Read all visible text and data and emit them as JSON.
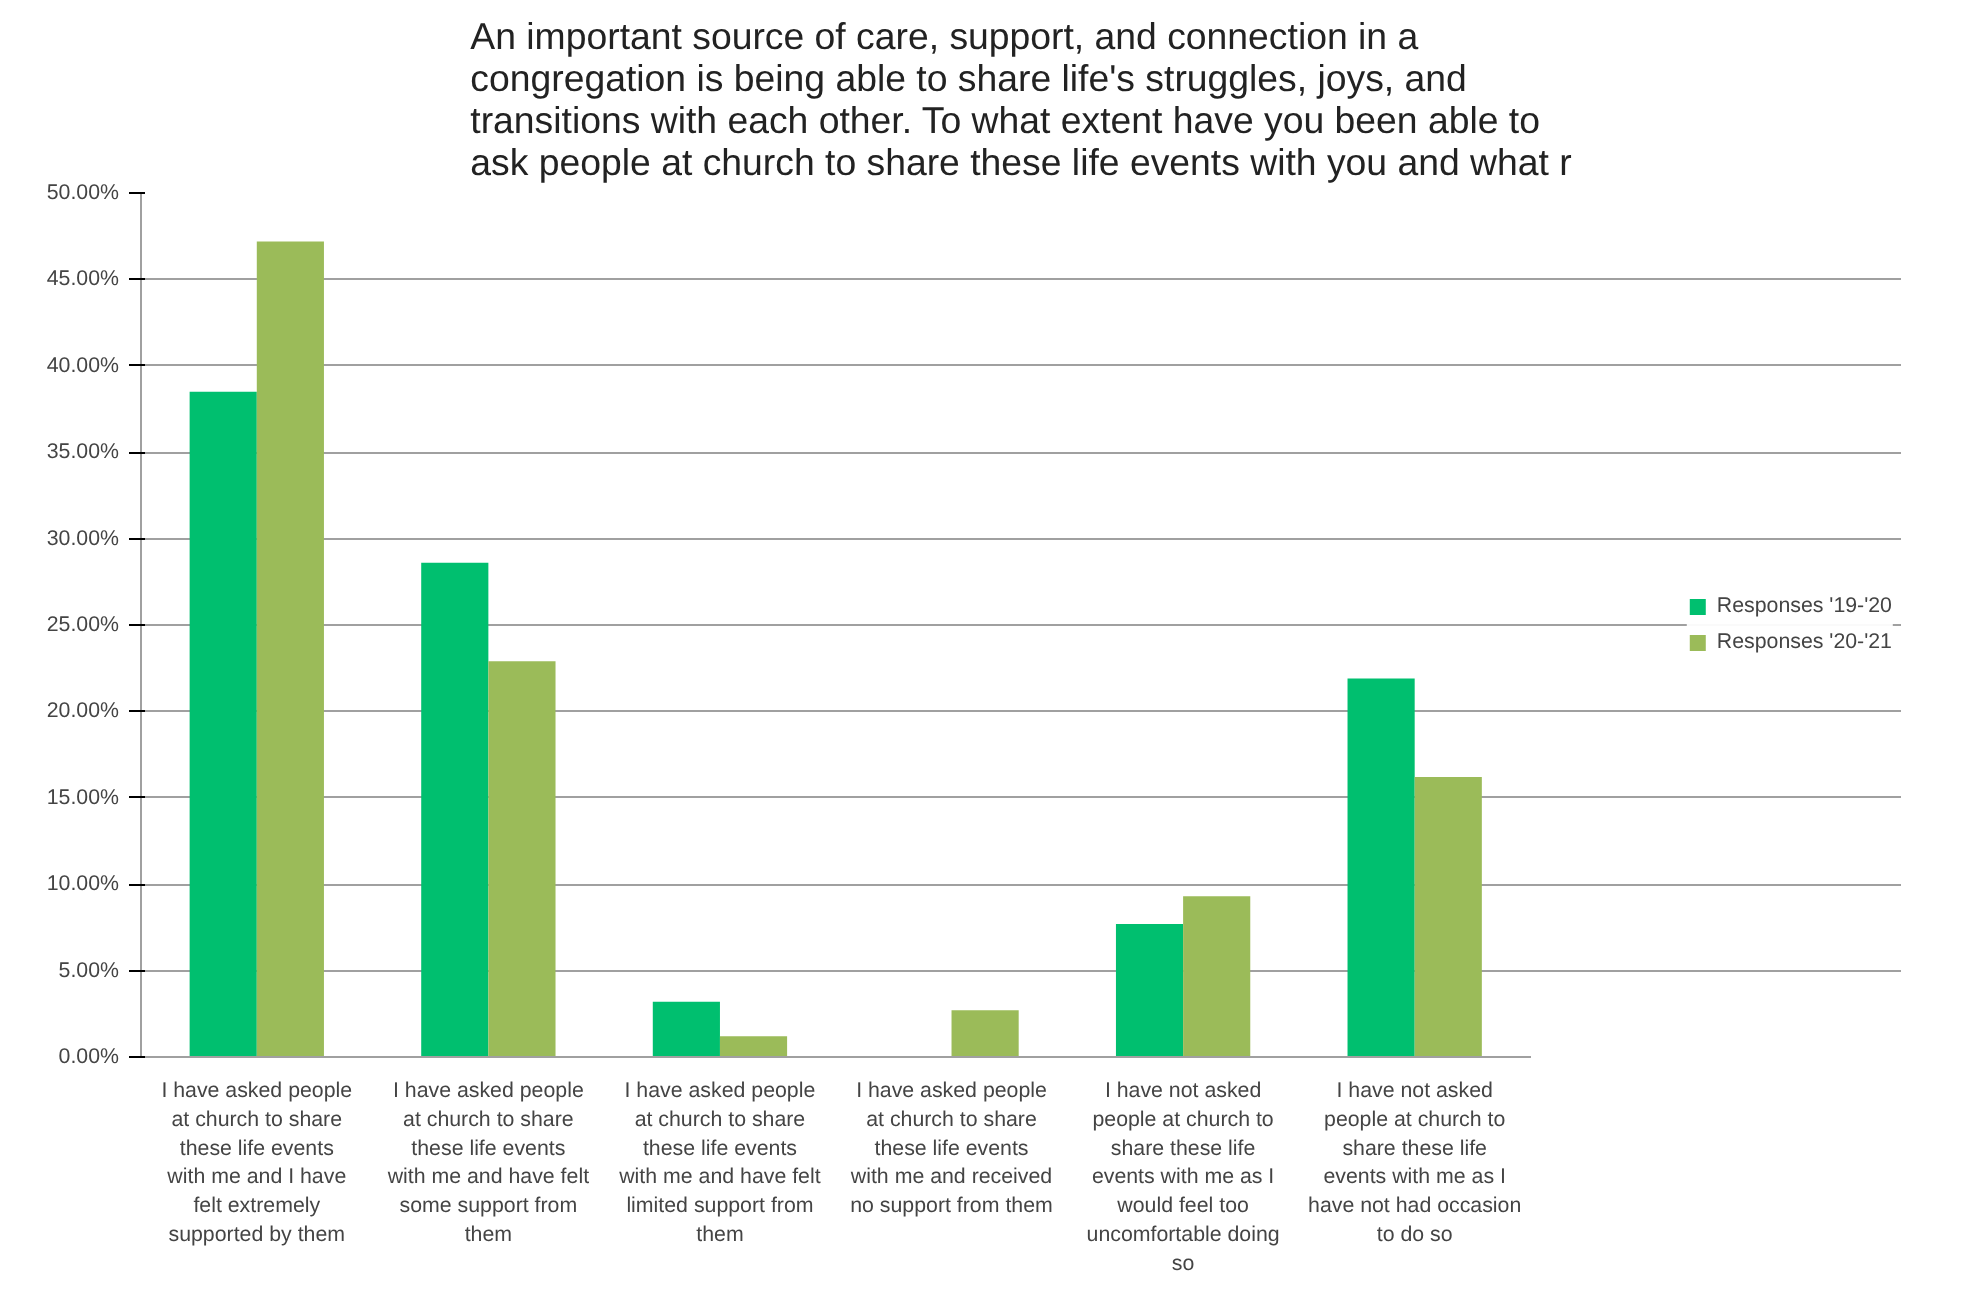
{
  "chart_data": {
    "type": "bar",
    "title": "An important source of care, support, and connection in a congregation is being able to share life's struggles, joys, and transitions with each other. To what extent have you been able to ask people at church to share these life events with you and what r",
    "categories": [
      "I have asked people at church to share these life events with me and I have felt extremely supported by them",
      "I have asked people at church to share these life events with me and have felt some support from them",
      "I have asked people at church to share these life events with me and have felt limited support from them",
      "I have asked people at church to share these life events with me and received no support from them",
      "I have not asked people at church to share these life events with me as I would feel too uncomfortable doing so",
      "I have not asked people at church to share these life events with me as I have not had occasion to do so"
    ],
    "series": [
      {
        "name": "Responses '19-'20",
        "color": "#00bf6f",
        "values": [
          38.5,
          28.6,
          3.2,
          0,
          7.7,
          21.9
        ]
      },
      {
        "name": "Responses '20-'21",
        "color": "#9bbb59",
        "values": [
          47.2,
          22.9,
          1.2,
          2.7,
          9.3,
          16.2
        ]
      }
    ],
    "ylim": [
      0,
      50
    ],
    "yticks": [
      {
        "value": 0,
        "label": "0.00%"
      },
      {
        "value": 5,
        "label": "5.00%"
      },
      {
        "value": 10,
        "label": "10.00%"
      },
      {
        "value": 15,
        "label": "15.00%"
      },
      {
        "value": 20,
        "label": "20.00%"
      },
      {
        "value": 25,
        "label": "25.00%"
      },
      {
        "value": 30,
        "label": "30.00%"
      },
      {
        "value": 35,
        "label": "35.00%"
      },
      {
        "value": 40,
        "label": "40.00%"
      },
      {
        "value": 45,
        "label": "45.00%"
      },
      {
        "value": 50,
        "label": "50.00%"
      }
    ],
    "grid": "y",
    "legend": "right"
  }
}
